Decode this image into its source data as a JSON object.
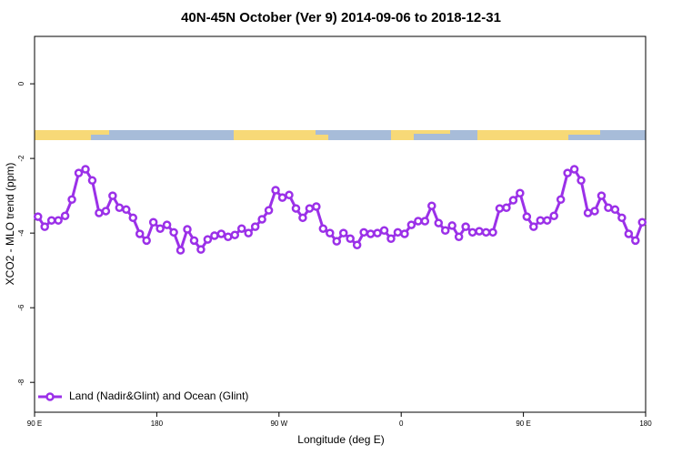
{
  "chart_data": {
    "type": "line",
    "title": "40N-45N October (Ver 9)   2014-09-06 to 2018-12-31",
    "x_label": "Longitude (deg E)",
    "y_label": "XCO2 - MLO trend (ppm)",
    "xlim": [
      90,
      540
    ],
    "ylim": [
      -8.8,
      1.27
    ],
    "xticks": [
      {
        "value": 90,
        "label": "90 E"
      },
      180,
      {
        "value": 270,
        "label": "90 W"
      },
      {
        "value": 360,
        "label": "0"
      },
      {
        "value": 450,
        "label": "90 E"
      },
      {
        "value": 540,
        "label": "180"
      }
    ],
    "yticks": [
      0,
      -2,
      -4,
      -6,
      -8
    ],
    "legend": "bottom-left",
    "x": [
      92.5,
      97.5,
      102.5,
      107.5,
      112.5,
      117.5,
      122.5,
      127.5,
      132.5,
      137.5,
      142.5,
      147.5,
      152.5,
      157.5,
      162.5,
      167.5,
      172.5,
      177.5,
      182.5,
      187.5,
      192.5,
      197.5,
      202.5,
      207.5,
      212.5,
      217.5,
      222.5,
      227.5,
      232.5,
      237.5,
      242.5,
      247.5,
      252.5,
      257.5,
      262.5,
      267.5,
      272.5,
      277.5,
      282.5,
      287.5,
      292.5,
      297.5,
      302.5,
      307.5,
      312.5,
      317.5,
      322.5,
      327.5,
      332.5,
      337.5,
      342.5,
      347.5,
      352.5,
      357.5,
      362.5,
      367.5,
      372.5,
      377.5,
      382.5,
      387.5,
      392.5,
      397.5,
      402.5,
      407.5,
      412.5,
      417.5,
      422.5,
      427.5,
      432.5,
      437.5,
      442.5,
      447.5,
      452.5,
      457.5,
      462.5,
      467.5,
      472.5,
      477.5,
      482.5,
      487.5,
      492.5,
      497.5,
      502.5,
      507.5,
      512.5,
      517.5,
      522.5,
      527.5,
      532.5,
      537.5
    ],
    "series": [
      {
        "name": "Land (Nadir&Glint) and Ocean (Glint)",
        "color": "#9b30e8",
        "values": [
          -3.56,
          -3.83,
          -3.66,
          -3.66,
          -3.54,
          -3.1,
          -2.39,
          -2.29,
          -2.59,
          -3.46,
          -3.41,
          -3.0,
          -3.32,
          -3.37,
          -3.59,
          -4.02,
          -4.2,
          -3.71,
          -3.88,
          -3.78,
          -3.98,
          -4.46,
          -3.9,
          -4.2,
          -4.44,
          -4.17,
          -4.07,
          -4.02,
          -4.1,
          -4.05,
          -3.88,
          -4.0,
          -3.83,
          -3.63,
          -3.39,
          -2.85,
          -3.05,
          -2.98,
          -3.34,
          -3.59,
          -3.34,
          -3.29,
          -3.88,
          -4.0,
          -4.22,
          -4.0,
          -4.15,
          -4.32,
          -3.98,
          -4.02,
          -4.0,
          -3.93,
          -4.15,
          -3.98,
          -4.02,
          -3.78,
          -3.68,
          -3.68,
          -3.27,
          -3.73,
          -3.93,
          -3.8,
          -4.1,
          -3.83,
          -3.98,
          -3.95,
          -3.98,
          -3.98,
          -3.34,
          -3.32,
          -3.12,
          -2.93,
          -3.56,
          -3.83,
          -3.66,
          -3.66,
          -3.54,
          -3.1,
          -2.39,
          -2.29,
          -2.59,
          -3.46,
          -3.41,
          -3.0,
          -3.32,
          -3.37,
          -3.59,
          -4.02,
          -4.2,
          -3.71
        ]
      }
    ]
  }
}
